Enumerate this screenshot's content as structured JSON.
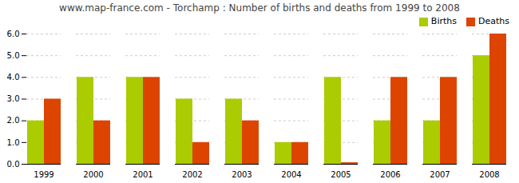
{
  "chart_data": {
    "type": "bar",
    "title": "www.map-france.com - Torchamp : Number of births and deaths from 1999 to 2008",
    "categories": [
      "1999",
      "2000",
      "2001",
      "2002",
      "2003",
      "2004",
      "2005",
      "2006",
      "2007",
      "2008"
    ],
    "series": [
      {
        "name": "Births",
        "color": "#aacc00",
        "values": [
          2,
          4,
          4,
          3,
          3,
          1,
          4,
          2,
          2,
          5
        ]
      },
      {
        "name": "Deaths",
        "color": "#dd4400",
        "values": [
          3,
          2,
          4,
          1,
          2,
          1,
          0.07,
          4,
          4,
          6
        ]
      }
    ],
    "ylim": [
      0,
      6
    ],
    "yticks": [
      0,
      1,
      2,
      3,
      4,
      5,
      6
    ],
    "grid": true,
    "legend": "upper right"
  }
}
